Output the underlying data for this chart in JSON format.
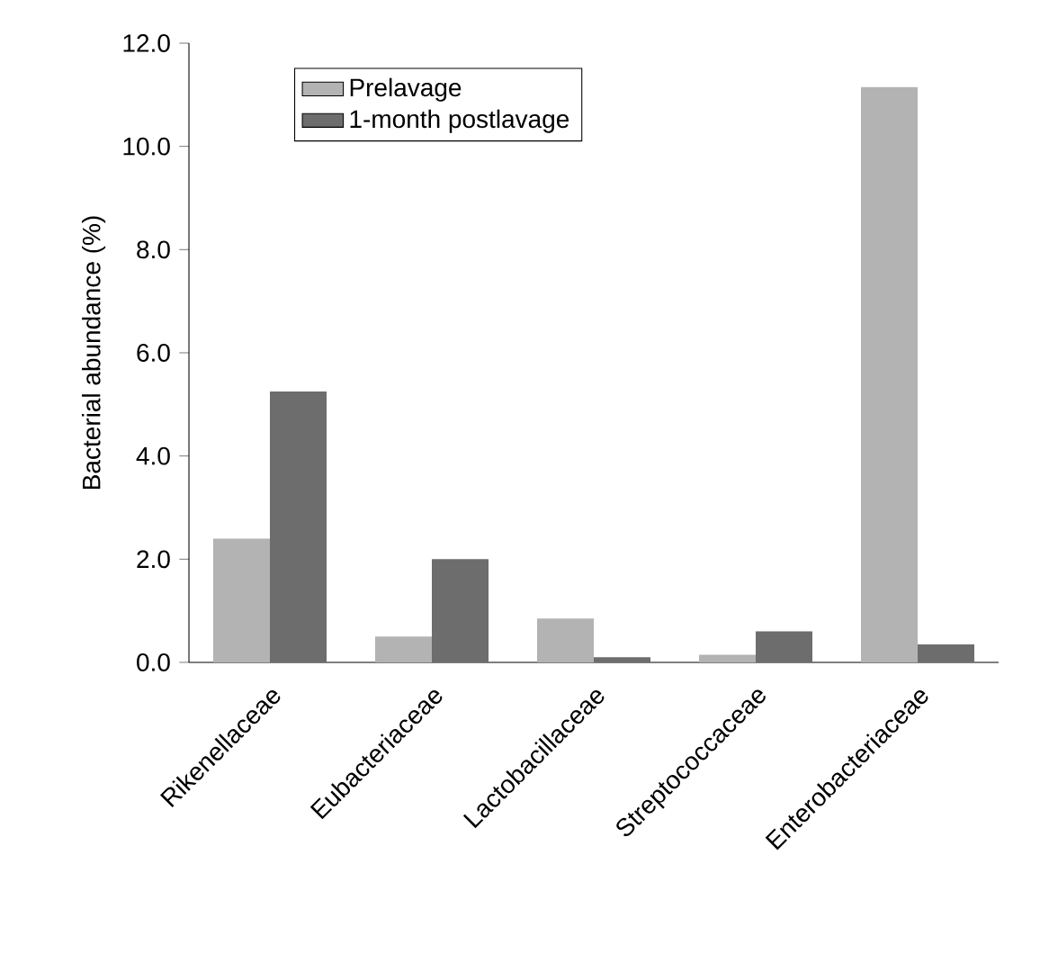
{
  "chart_data": {
    "type": "bar",
    "ylabel": "Bacterial abundance (%)",
    "categories": [
      "Rikenellaceae",
      "Eubacteriaceae",
      "Lactobacillaceae",
      "Streptococcaceae",
      "Enterobacteriaceae"
    ],
    "series": [
      {
        "name": "Prelavage",
        "color": "#b3b3b3",
        "values": [
          2.4,
          0.5,
          0.85,
          0.15,
          11.15
        ]
      },
      {
        "name": "1-month postlavage",
        "color": "#6d6d6d",
        "values": [
          5.25,
          2.0,
          0.1,
          0.6,
          0.35
        ]
      }
    ],
    "ylim": [
      0,
      12
    ],
    "yticks": [
      {
        "value": 0,
        "label": "0.0"
      },
      {
        "value": 2,
        "label": "2.0"
      },
      {
        "value": 4,
        "label": "4.0"
      },
      {
        "value": 6,
        "label": "6.0"
      },
      {
        "value": 8,
        "label": "8.0"
      },
      {
        "value": 10,
        "label": "10.0"
      },
      {
        "value": 12,
        "label": "12.0"
      }
    ],
    "legend": "top left",
    "grid": false
  }
}
